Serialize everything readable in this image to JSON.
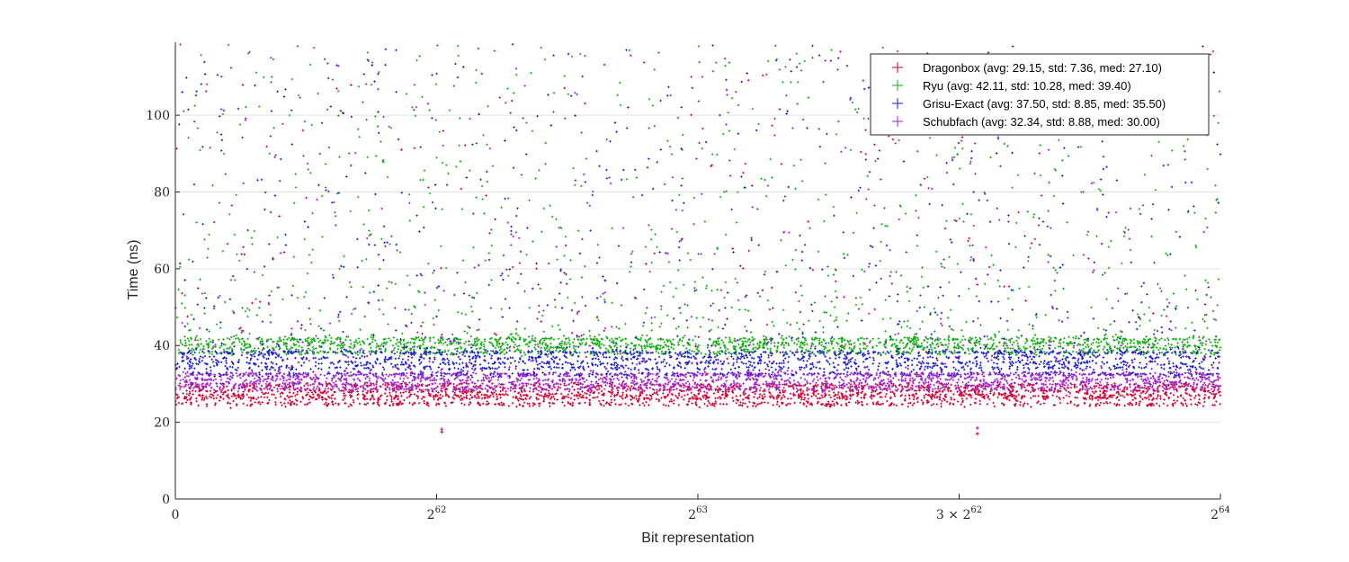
{
  "chart_data": {
    "type": "scatter",
    "title": "",
    "xlabel": "Bit representation",
    "ylabel": "Time (ns)",
    "xlim": [
      0,
      4
    ],
    "ylim": [
      0,
      119
    ],
    "grid": "horizontal",
    "legend_position": "top-right",
    "x_unit_note": "x in units of 2^62",
    "x_ticks": [
      {
        "value": 0,
        "base": "0",
        "exp": ""
      },
      {
        "value": 1,
        "base": "2",
        "exp": "62"
      },
      {
        "value": 2,
        "base": "2",
        "exp": "63"
      },
      {
        "value": 3,
        "base": "3 × 2",
        "exp": "62"
      },
      {
        "value": 4,
        "base": "2",
        "exp": "64"
      }
    ],
    "y_ticks": [
      "0",
      "20",
      "40",
      "60",
      "80",
      "100"
    ],
    "series": [
      {
        "name": "Dragonbox (avg: 29.15, std: 7.36, med: 27.10)",
        "color": "#cc0033",
        "avg": 29.15,
        "std": 7.36,
        "med": 27.1,
        "bands": [
          24.8,
          26.3,
          27.1,
          28.2,
          29.5
        ],
        "tail_frac": 0.1
      },
      {
        "name": "Ryu (avg: 42.11, std: 10.28, med: 39.40)",
        "color": "#11aa11",
        "avg": 42.11,
        "std": 10.28,
        "med": 39.4,
        "bands": [
          38.2,
          39.4,
          40.5,
          41.6
        ],
        "tail_frac": 0.32
      },
      {
        "name": "Grisu-Exact (avg: 37.50, std: 8.85, med: 35.50)",
        "color": "#1a1acc",
        "avg": 37.5,
        "std": 8.85,
        "med": 35.5,
        "bands": [
          32.5,
          34.2,
          35.5,
          36.8,
          38.1
        ],
        "tail_frac": 0.26
      },
      {
        "name": "Schubfach (avg: 32.34, std: 8.88, med: 30.00)",
        "color": "#a020c8",
        "avg": 32.34,
        "std": 8.88,
        "med": 30.0,
        "bands": [
          28.8,
          30.0,
          31.2,
          32.4
        ],
        "tail_frac": 0.18
      }
    ],
    "annotations": [
      {
        "series": "Dragonbox",
        "x": 1.02,
        "y": 17.5
      },
      {
        "series": "Schubfach",
        "x": 1.02,
        "y": 18.2
      },
      {
        "series": "Dragonbox",
        "x": 3.07,
        "y": 17.0
      },
      {
        "series": "Schubfach",
        "x": 3.07,
        "y": 18.5
      }
    ]
  }
}
